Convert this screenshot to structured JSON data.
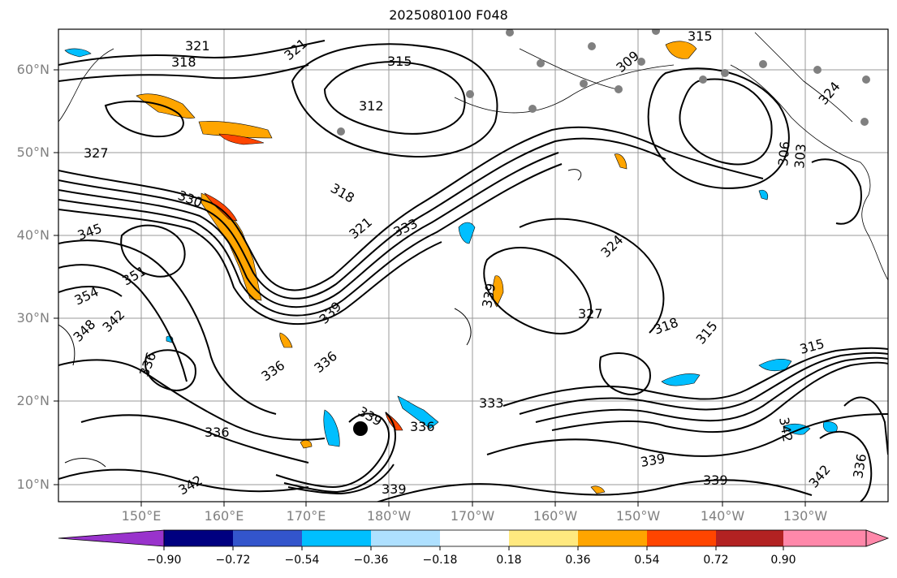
{
  "title": "2025080100 F048",
  "map": {
    "lat_labels": [
      "60°N",
      "50°N",
      "40°N",
      "30°N",
      "20°N",
      "10°N"
    ],
    "lon_labels": [
      "150°E",
      "160°E",
      "170°E",
      "180°W",
      "170°W",
      "160°W",
      "150°W",
      "140°W",
      "130°W"
    ],
    "contour_labels": [
      "321",
      "318",
      "315",
      "312",
      "327",
      "330",
      "345",
      "351",
      "354",
      "342",
      "348",
      "336",
      "339",
      "333",
      "324",
      "306",
      "303",
      "309"
    ],
    "marker_icon": "storm-center-dot"
  },
  "colorbar": {
    "tick_labels": [
      "−0.90",
      "−0.72",
      "−0.54",
      "−0.36",
      "−0.18",
      "0.18",
      "0.36",
      "0.54",
      "0.72",
      "0.90"
    ],
    "colors": [
      "#9933cc",
      "#000080",
      "#3355cc",
      "#00bfff",
      "#aee0ff",
      "#ffffff",
      "#ffe97f",
      "#ffa500",
      "#ff4500",
      "#b22222",
      "#ff88aa"
    ]
  },
  "colors": {
    "contour": "#000000",
    "grid": "#999999",
    "coast": "#000000",
    "station": "#808080"
  }
}
